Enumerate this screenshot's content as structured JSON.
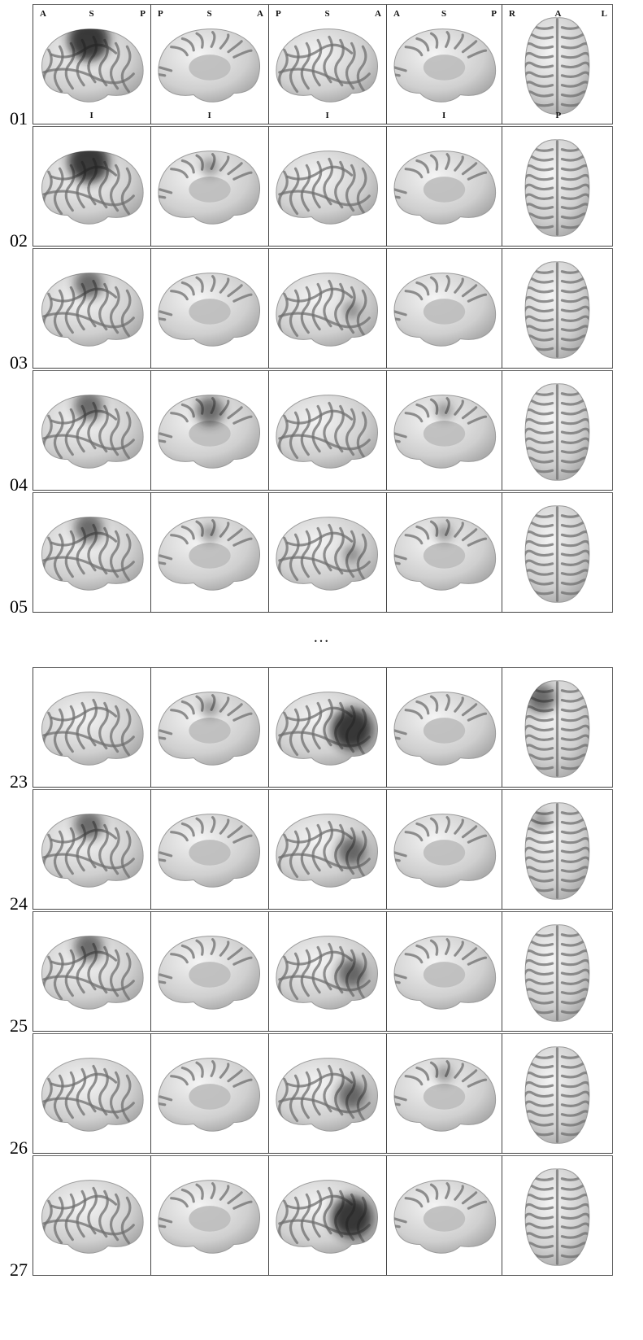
{
  "figure": {
    "ellipsis": "…",
    "orientation_labels": [
      {
        "top_left": "A",
        "top_center": "S",
        "top_right": "P",
        "bottom_center": "I"
      },
      {
        "top_left": "P",
        "top_center": "S",
        "top_right": "A",
        "bottom_center": "I"
      },
      {
        "top_left": "P",
        "top_center": "S",
        "top_right": "A",
        "bottom_center": "I"
      },
      {
        "top_left": "A",
        "top_center": "S",
        "top_right": "P",
        "bottom_center": "I"
      },
      {
        "top_left": "R",
        "top_center": "A",
        "top_right": "L",
        "bottom_center": "P"
      }
    ],
    "views": [
      "lateral-left",
      "medial-left",
      "lateral-right",
      "medial-right",
      "superior"
    ],
    "rows": [
      {
        "label": "01",
        "activation": [
          "heavy",
          "none",
          "none",
          "none",
          "none"
        ]
      },
      {
        "label": "02",
        "activation": [
          "heavy",
          "light",
          "none",
          "none",
          "none"
        ]
      },
      {
        "label": "03",
        "activation": [
          "medium",
          "none",
          "light",
          "none",
          "none"
        ]
      },
      {
        "label": "04",
        "activation": [
          "medium",
          "medium",
          "none",
          "light",
          "none"
        ]
      },
      {
        "label": "05",
        "activation": [
          "medium",
          "light",
          "light",
          "light",
          "none"
        ]
      },
      {
        "label": "23",
        "activation": [
          "none",
          "light",
          "heavy",
          "none",
          "medium"
        ]
      },
      {
        "label": "24",
        "activation": [
          "medium",
          "none",
          "medium",
          "none",
          "light"
        ]
      },
      {
        "label": "25",
        "activation": [
          "medium",
          "none",
          "medium",
          "none",
          "none"
        ]
      },
      {
        "label": "26",
        "activation": [
          "none",
          "none",
          "medium",
          "light",
          "none"
        ]
      },
      {
        "label": "27",
        "activation": [
          "none",
          "none",
          "heavy",
          "none",
          "none"
        ]
      }
    ]
  }
}
